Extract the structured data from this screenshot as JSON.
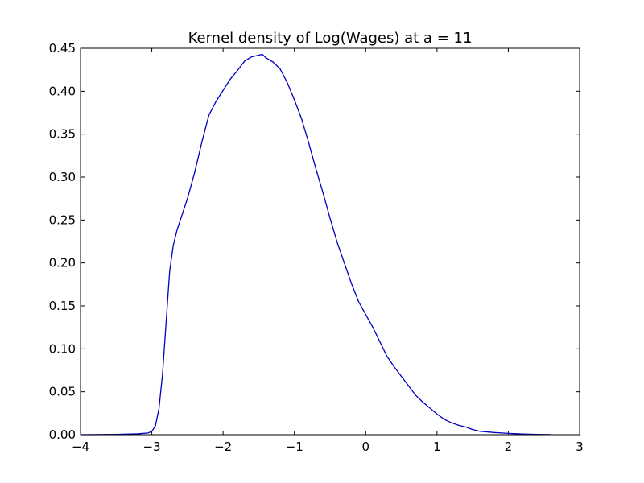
{
  "chart_data": {
    "type": "line",
    "title": "Kernel density of Log(Wages) at a = 11",
    "xlabel": "",
    "ylabel": "",
    "xlim": [
      -4,
      3
    ],
    "ylim": [
      0,
      0.45
    ],
    "x_ticks": [
      -4,
      -3,
      -2,
      -1,
      0,
      1,
      2,
      3
    ],
    "x_tick_labels": [
      "−4",
      "−3",
      "−2",
      "−1",
      "0",
      "1",
      "2",
      "3"
    ],
    "y_ticks": [
      0.0,
      0.05,
      0.1,
      0.15,
      0.2,
      0.25,
      0.3,
      0.35,
      0.4,
      0.45
    ],
    "y_tick_labels": [
      "0.00",
      "0.05",
      "0.10",
      "0.15",
      "0.20",
      "0.25",
      "0.30",
      "0.35",
      "0.40",
      "0.45"
    ],
    "grid": false,
    "line_color": "#0000bf",
    "series": [
      {
        "x": [
          -4.0,
          -3.5,
          -3.2,
          -3.05,
          -3.0,
          -2.95,
          -2.9,
          -2.85,
          -2.8,
          -2.75,
          -2.7,
          -2.65,
          -2.6,
          -2.5,
          -2.4,
          -2.3,
          -2.2,
          -2.1,
          -2.0,
          -1.9,
          -1.8,
          -1.7,
          -1.6,
          -1.5,
          -1.45,
          -1.4,
          -1.3,
          -1.2,
          -1.1,
          -1.0,
          -0.9,
          -0.8,
          -0.7,
          -0.6,
          -0.5,
          -0.4,
          -0.3,
          -0.2,
          -0.1,
          0.0,
          0.1,
          0.2,
          0.3,
          0.4,
          0.5,
          0.6,
          0.7,
          0.8,
          0.9,
          1.0,
          1.1,
          1.2,
          1.3,
          1.4,
          1.5,
          1.6,
          1.8,
          2.0,
          2.2,
          2.4,
          2.6
        ],
        "y": [
          0.0,
          0.0003,
          0.001,
          0.002,
          0.004,
          0.01,
          0.03,
          0.07,
          0.13,
          0.19,
          0.22,
          0.237,
          0.25,
          0.275,
          0.305,
          0.34,
          0.372,
          0.388,
          0.401,
          0.414,
          0.424,
          0.435,
          0.44,
          0.442,
          0.443,
          0.439,
          0.434,
          0.426,
          0.41,
          0.39,
          0.368,
          0.34,
          0.31,
          0.282,
          0.252,
          0.224,
          0.2,
          0.176,
          0.155,
          0.14,
          0.125,
          0.108,
          0.091,
          0.079,
          0.068,
          0.057,
          0.046,
          0.038,
          0.031,
          0.024,
          0.018,
          0.014,
          0.011,
          0.009,
          0.006,
          0.004,
          0.0025,
          0.0015,
          0.0008,
          0.0003,
          0.0001
        ]
      }
    ]
  }
}
